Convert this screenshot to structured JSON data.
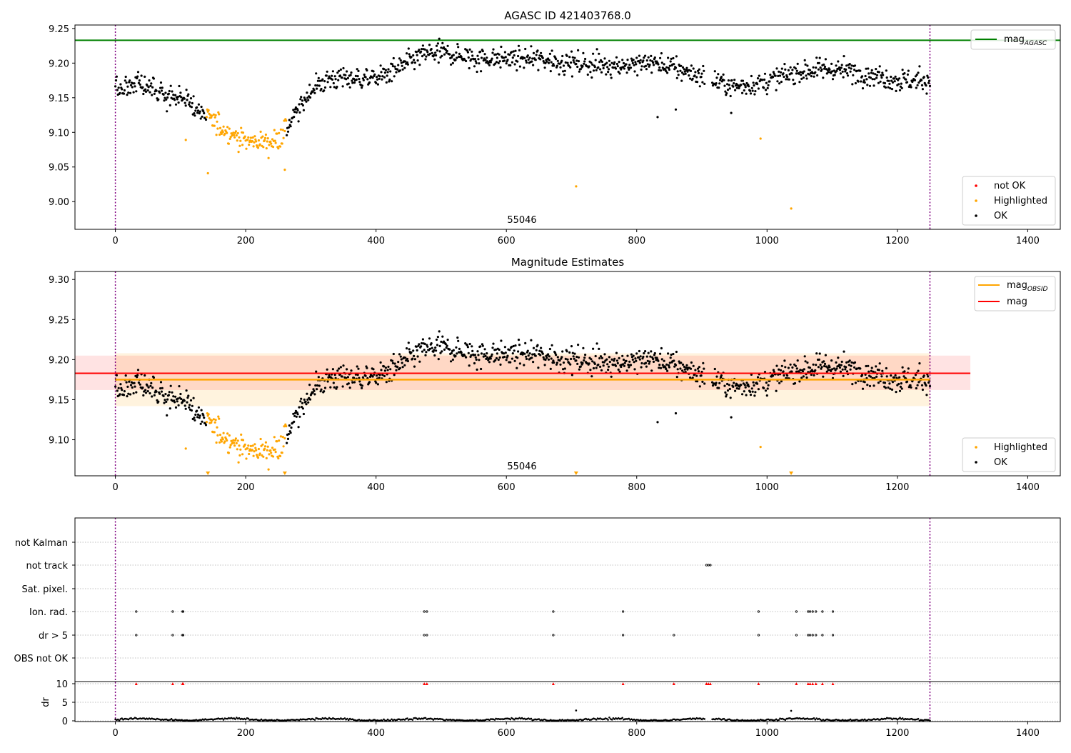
{
  "colors": {
    "ok": "#000000",
    "highlighted": "#ffa500",
    "not_ok": "#ff0000",
    "agasc_line": "#008000",
    "mag_line": "#ff0000",
    "obsid_line": "#ffa500",
    "obs_boundary": "#800080"
  },
  "chart_data": [
    {
      "type": "scatter",
      "title": "AGASC ID 421403768.0",
      "xlim": [
        -62,
        1450
      ],
      "ylim": [
        8.96,
        9.255
      ],
      "xticks": [
        0,
        200,
        400,
        600,
        800,
        1000,
        1200,
        1400
      ],
      "yticks": [
        "9.00",
        "9.05",
        "9.10",
        "9.15",
        "9.20",
        "9.25"
      ],
      "grid": false,
      "annotation": {
        "text": "55046",
        "x": 622,
        "y": 8.965
      },
      "obs_boundaries": [
        0,
        1250
      ],
      "mag_agasc": 9.233,
      "legend_upper": {
        "position": "top-right",
        "entries": [
          "mag_AGASC"
        ]
      },
      "legend_lower": {
        "position": "bottom-right",
        "entries": [
          "not OK",
          "Highlighted",
          "OK"
        ]
      },
      "legend_labels": {
        "mag_agasc_main": "mag",
        "mag_agasc_sub": "AGASC",
        "not_ok": "not OK",
        "highlighted": "Highlighted",
        "ok": "OK"
      },
      "series_description": "Estimated magnitude per sample, x in sample index 0-1250",
      "profile": [
        [
          0,
          9.162
        ],
        [
          40,
          9.172
        ],
        [
          60,
          9.16
        ],
        [
          90,
          9.148
        ],
        [
          110,
          9.148
        ],
        [
          125,
          9.132
        ],
        [
          150,
          9.115
        ],
        [
          170,
          9.103
        ],
        [
          200,
          9.087
        ],
        [
          240,
          9.086
        ],
        [
          255,
          9.095
        ],
        [
          265,
          9.11
        ],
        [
          280,
          9.13
        ],
        [
          300,
          9.162
        ],
        [
          330,
          9.178
        ],
        [
          400,
          9.178
        ],
        [
          430,
          9.19
        ],
        [
          470,
          9.212
        ],
        [
          500,
          9.215
        ],
        [
          550,
          9.207
        ],
        [
          650,
          9.206
        ],
        [
          720,
          9.198
        ],
        [
          800,
          9.197
        ],
        [
          820,
          9.202
        ],
        [
          870,
          9.19
        ],
        [
          920,
          9.174
        ],
        [
          950,
          9.166
        ],
        [
          1000,
          9.173
        ],
        [
          1050,
          9.188
        ],
        [
          1100,
          9.192
        ],
        [
          1150,
          9.185
        ],
        [
          1200,
          9.175
        ],
        [
          1250,
          9.175
        ]
      ],
      "highlight_range": [
        140,
        262
      ],
      "outliers_highlighted": [
        [
          108,
          9.089
        ],
        [
          142,
          9.041
        ],
        [
          260,
          9.046
        ],
        [
          707,
          9.022
        ],
        [
          990,
          9.091
        ],
        [
          1037,
          8.99
        ]
      ],
      "outliers_ok": [
        [
          832,
          9.122
        ],
        [
          860,
          9.133
        ],
        [
          945,
          9.128
        ]
      ],
      "noise_sd": 0.008
    },
    {
      "type": "scatter",
      "title": "Magnitude Estimates",
      "xlim": [
        -62,
        1450
      ],
      "ylim": [
        9.055,
        9.31
      ],
      "xticks": [
        0,
        200,
        400,
        600,
        800,
        1000,
        1200,
        1400
      ],
      "yticks": [
        "9.10",
        "9.15",
        "9.20",
        "9.25",
        "9.30"
      ],
      "grid": false,
      "annotation": {
        "text": "55046",
        "x": 622,
        "y": 9.06
      },
      "obs_boundaries": [
        0,
        1250
      ],
      "mag_obsid": 9.175,
      "mag_obsid_band": [
        9.142,
        9.208
      ],
      "mag_obsid_span": [
        0,
        1250
      ],
      "mag": 9.183,
      "mag_band": [
        9.162,
        9.205
      ],
      "mag_span": [
        -62,
        1312
      ],
      "clipped_markers_x": [
        142,
        260,
        707,
        1037
      ],
      "legend_upper": {
        "position": "top-right",
        "entries": [
          "mag_OBSID",
          "mag"
        ]
      },
      "legend_lower": {
        "position": "bottom-right",
        "entries": [
          "Highlighted",
          "OK"
        ]
      },
      "legend_labels": {
        "mag_obsid_main": "mag",
        "mag_obsid_sub": "OBSID",
        "mag": "mag",
        "highlighted": "Highlighted",
        "ok": "OK"
      }
    },
    {
      "type": "scatter",
      "title": "",
      "xlim": [
        -62,
        1450
      ],
      "xticks": [
        0,
        200,
        400,
        600,
        800,
        1000,
        1200,
        1400
      ],
      "flag_rows": [
        "not Kalman",
        "not track",
        "Sat. pixel.",
        "Ion. rad.",
        "dr > 5",
        "OBS not OK"
      ],
      "flag_points": {
        "not Kalman": [],
        "not track": [
          907,
          910,
          913
        ],
        "Sat. pixel.": [],
        "Ion. rad.": [
          32,
          88,
          103,
          104,
          474,
          478,
          672,
          779,
          987,
          1045,
          1063,
          1066,
          1070,
          1075,
          1085,
          1101
        ],
        "dr > 5": [
          32,
          88,
          103,
          104,
          474,
          478,
          672,
          779,
          857,
          987,
          1045,
          1063,
          1066,
          1070,
          1075,
          1085,
          1101
        ],
        "OBS not OK": []
      },
      "dr_ylabel": "dr",
      "dr_ylim": [
        0,
        10
      ],
      "dr_yticks": [
        "0",
        "5",
        "10"
      ],
      "dr_clipped_x": [
        32,
        88,
        103,
        104,
        474,
        478,
        672,
        779,
        857,
        907,
        910,
        913,
        987,
        1045,
        1063,
        1066,
        1070,
        1075,
        1085,
        1101
      ],
      "dr_outliers": [
        [
          707,
          2.8
        ],
        [
          1037,
          2.7
        ]
      ],
      "obs_boundaries": [
        0,
        1250
      ]
    }
  ]
}
